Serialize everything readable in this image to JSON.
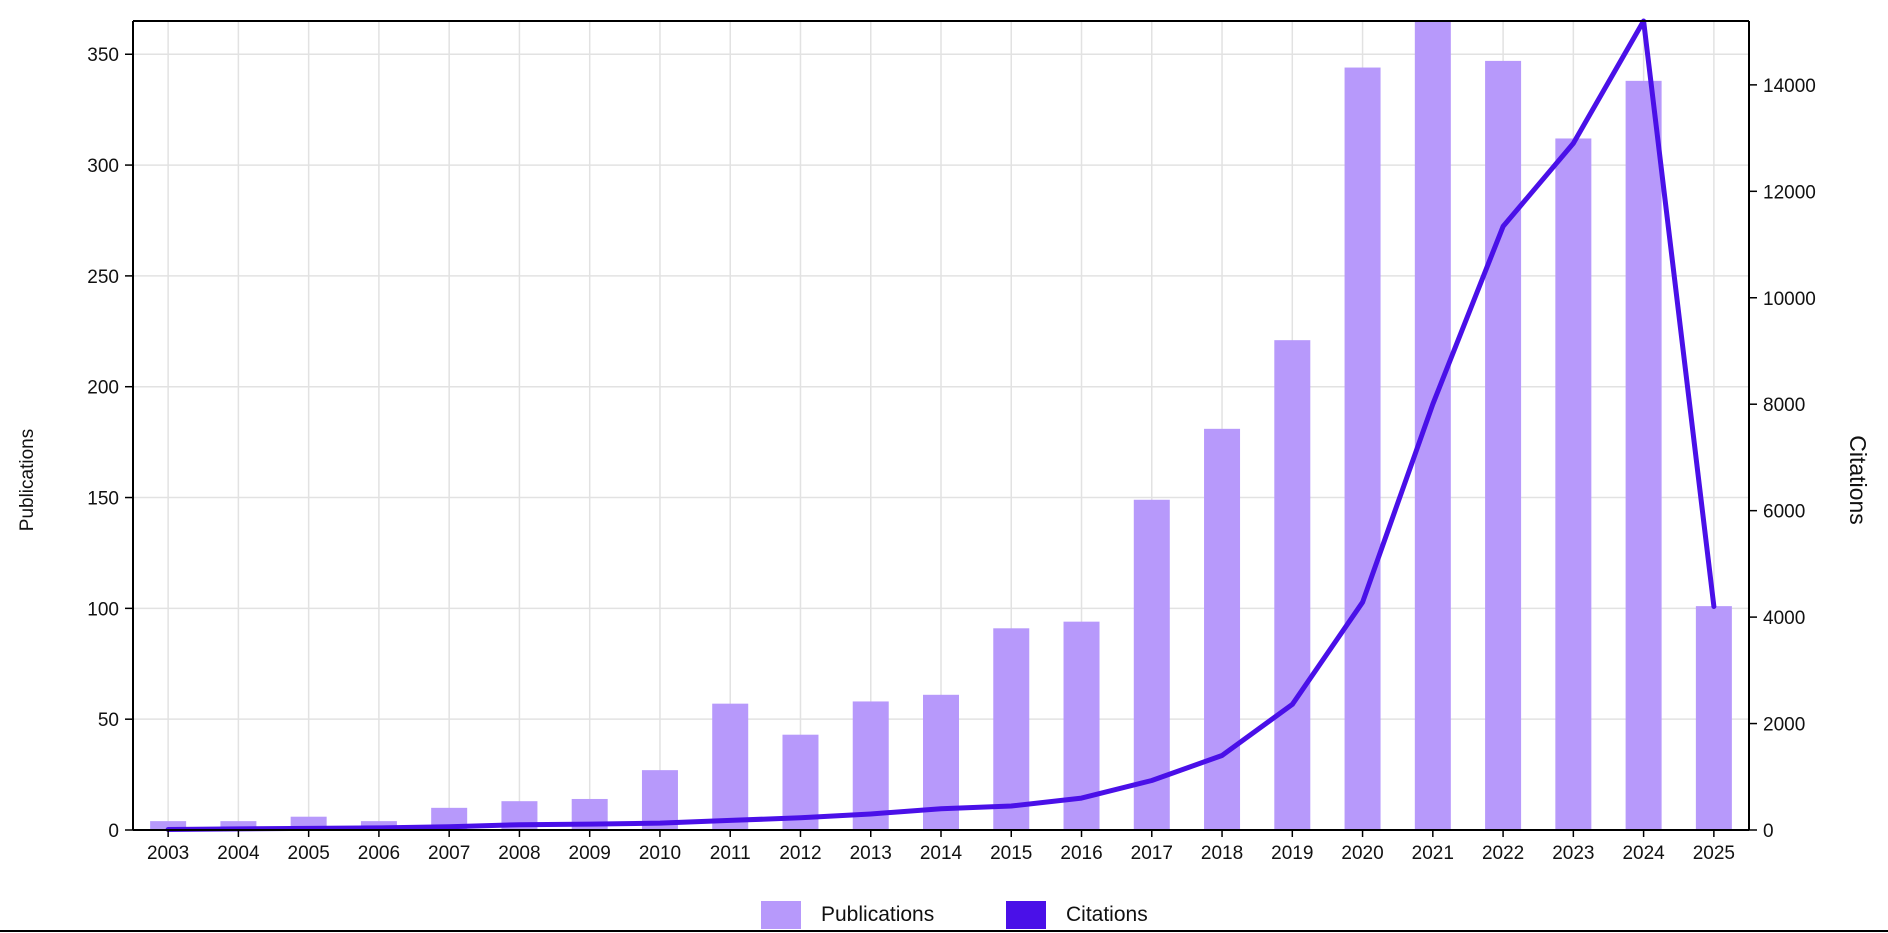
{
  "chart_data": {
    "type": "bar",
    "categories": [
      "2003",
      "2004",
      "2005",
      "2006",
      "2007",
      "2008",
      "2009",
      "2010",
      "2011",
      "2012",
      "2013",
      "2014",
      "2015",
      "2016",
      "2017",
      "2018",
      "2019",
      "2020",
      "2021",
      "2022",
      "2023",
      "2024",
      "2025"
    ],
    "series": [
      {
        "name": "Publications",
        "type": "bar",
        "axis": "left",
        "color": "#b799fb",
        "values": [
          4,
          4,
          6,
          4,
          10,
          13,
          14,
          27,
          57,
          43,
          58,
          61,
          91,
          94,
          149,
          181,
          221,
          344,
          365,
          347,
          312,
          338,
          101
        ]
      },
      {
        "name": "Citations",
        "type": "line",
        "axis": "right",
        "color": "#4a10e8",
        "values": [
          10,
          20,
          30,
          40,
          60,
          100,
          110,
          130,
          180,
          230,
          300,
          400,
          450,
          600,
          930,
          1400,
          2360,
          4280,
          8000,
          11340,
          12900,
          15200,
          4200
        ]
      }
    ],
    "title": "",
    "xlabel": "",
    "ylabel": "Publications",
    "y2label": "Citations",
    "ylim": [
      0,
      365
    ],
    "y2lim": [
      0,
      15200
    ],
    "yticks": [
      0,
      50,
      100,
      150,
      200,
      250,
      300,
      350
    ],
    "y2ticks": [
      0,
      2000,
      4000,
      6000,
      8000,
      10000,
      12000,
      14000
    ],
    "grid": true,
    "legend": "bottom-center"
  }
}
